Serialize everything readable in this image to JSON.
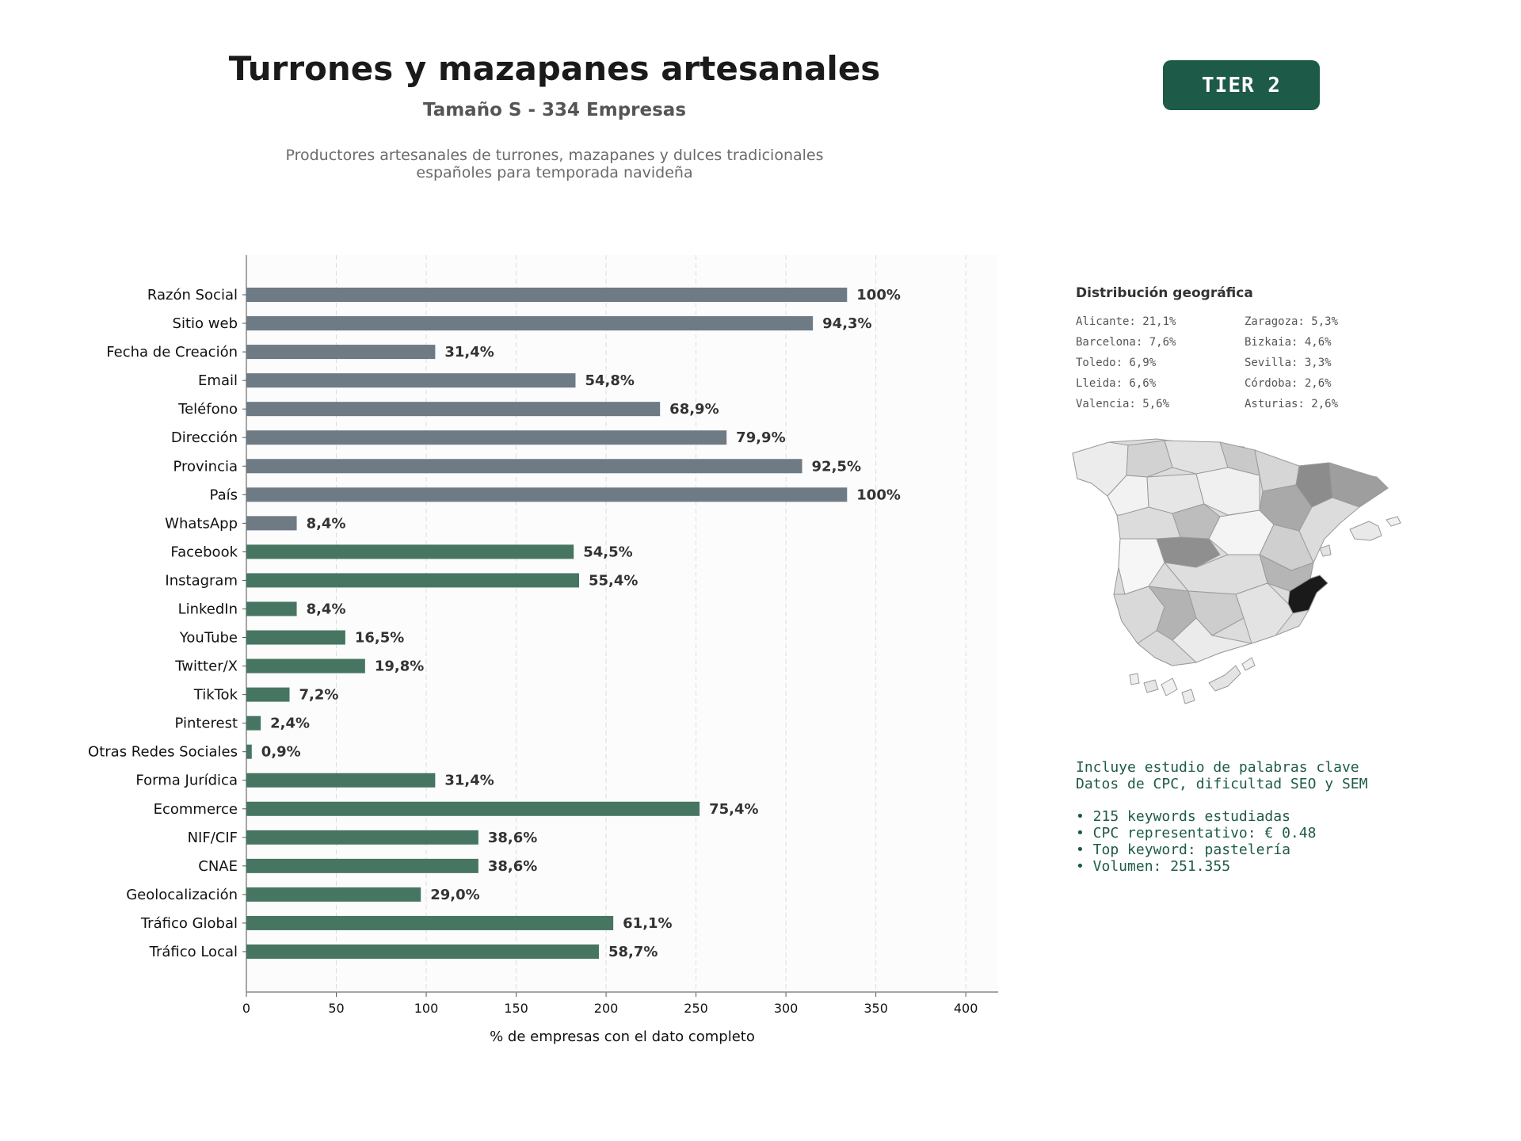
{
  "header": {
    "title": "Turrones y mazapanes artesanales",
    "subtitle": "Tamaño S - 334 Empresas",
    "description_line1": "Productores artesanales de turrones, mazapanes y dulces tradicionales",
    "description_line2": "españoles para temporada navideña",
    "tier_badge": "TIER 2"
  },
  "colors": {
    "accent": "#1e5a48",
    "contact_bars": "#6e7a84",
    "digital_bars": "#467662",
    "plot_background": "#fcfcfc"
  },
  "chart_data": {
    "type": "bar",
    "orientation": "horizontal",
    "xlabel": "% de empresas con el dato completo",
    "xlim": [
      0,
      418
    ],
    "xticks": [
      "0",
      "50",
      "100",
      "150",
      "200",
      "250",
      "300",
      "350",
      "400"
    ],
    "grid": "vertical dashed",
    "bars": [
      {
        "category": "Razón Social",
        "value": 334,
        "label": "100%",
        "group": "contact"
      },
      {
        "category": "Sitio web",
        "value": 315,
        "label": "94,3%",
        "group": "contact"
      },
      {
        "category": "Fecha de Creación",
        "value": 105,
        "label": "31,4%",
        "group": "contact"
      },
      {
        "category": "Email",
        "value": 183,
        "label": "54,8%",
        "group": "contact"
      },
      {
        "category": "Teléfono",
        "value": 230,
        "label": "68,9%",
        "group": "contact"
      },
      {
        "category": "Dirección",
        "value": 267,
        "label": "79,9%",
        "group": "contact"
      },
      {
        "category": "Provincia",
        "value": 309,
        "label": "92,5%",
        "group": "contact"
      },
      {
        "category": "País",
        "value": 334,
        "label": "100%",
        "group": "contact"
      },
      {
        "category": "WhatsApp",
        "value": 28,
        "label": "8,4%",
        "group": "contact"
      },
      {
        "category": "Facebook",
        "value": 182,
        "label": "54,5%",
        "group": "digital"
      },
      {
        "category": "Instagram",
        "value": 185,
        "label": "55,4%",
        "group": "digital"
      },
      {
        "category": "LinkedIn",
        "value": 28,
        "label": "8,4%",
        "group": "digital"
      },
      {
        "category": "YouTube",
        "value": 55,
        "label": "16,5%",
        "group": "digital"
      },
      {
        "category": "Twitter/X",
        "value": 66,
        "label": "19,8%",
        "group": "digital"
      },
      {
        "category": "TikTok",
        "value": 24,
        "label": "7,2%",
        "group": "digital"
      },
      {
        "category": "Pinterest",
        "value": 8,
        "label": "2,4%",
        "group": "digital"
      },
      {
        "category": "Otras Redes Sociales",
        "value": 3,
        "label": "0,9%",
        "group": "digital"
      },
      {
        "category": "Forma Jurídica",
        "value": 105,
        "label": "31,4%",
        "group": "digital"
      },
      {
        "category": "Ecommerce",
        "value": 252,
        "label": "75,4%",
        "group": "digital"
      },
      {
        "category": "NIF/CIF",
        "value": 129,
        "label": "38,6%",
        "group": "digital"
      },
      {
        "category": "CNAE",
        "value": 129,
        "label": "38,6%",
        "group": "digital"
      },
      {
        "category": "Geolocalización",
        "value": 97,
        "label": "29,0%",
        "group": "digital"
      },
      {
        "category": "Tráfico Global",
        "value": 204,
        "label": "61,1%",
        "group": "digital"
      },
      {
        "category": "Tráfico Local",
        "value": 196,
        "label": "58,7%",
        "group": "digital"
      }
    ]
  },
  "geo": {
    "title": "Distribución geográfica",
    "items": [
      "Alicante: 21,1%",
      "Zaragoza: 5,3%",
      "Barcelona: 7,6%",
      "Bizkaia: 4,6%",
      "Toledo: 6,9%",
      "Sevilla: 3,3%",
      "Lleida: 6,6%",
      "Córdoba: 2,6%",
      "Valencia: 5,6%",
      "Asturias: 2,6%"
    ]
  },
  "keywords": {
    "line1": "Incluye estudio de palabras clave",
    "line2": "Datos de CPC, dificultad SEO y SEM",
    "bullets": [
      "• 215 keywords estudiadas",
      "• CPC representativo: € 0.48",
      "• Top keyword: pastelería",
      "• Volumen: 251.355"
    ]
  }
}
